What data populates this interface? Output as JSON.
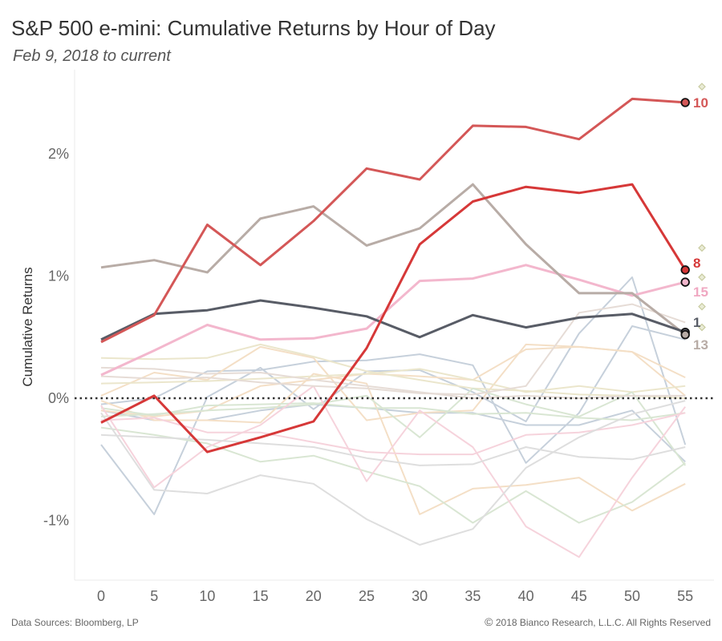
{
  "header": {
    "title": "S&P 500 e-mini: Cumulative Returns by Hour of Day",
    "subtitle": "Feb 9, 2018 to current"
  },
  "footer": {
    "source": "Data Sources: Bloomberg, LP",
    "copyright_symbol": "©",
    "copyright": "2018 Bianco Research, L.L.C. All Rights Reserved"
  },
  "chart_data": {
    "type": "line",
    "title": "S&P 500 e-mini: Cumulative Returns by Hour of Day",
    "subtitle": "Feb 9, 2018 to current",
    "xlabel": "",
    "ylabel": "Cumulative Returns",
    "x": [
      0,
      5,
      10,
      15,
      20,
      25,
      30,
      35,
      40,
      45,
      50,
      55
    ],
    "x_tick_labels": [
      "0",
      "5",
      "10",
      "15",
      "20",
      "25",
      "30",
      "35",
      "40",
      "45",
      "50",
      "55"
    ],
    "y_ticks": [
      -1,
      0,
      1,
      2
    ],
    "y_tick_labels": [
      "-1%",
      "0%",
      "1%",
      "2%"
    ],
    "ylim": [
      -1.48,
      2.55
    ],
    "xlim": [
      -2.5,
      57.5
    ],
    "zero_line": "dotted",
    "grid": false,
    "highlighted_series": [
      {
        "name": "10",
        "color": "#d45757",
        "values": [
          0.46,
          0.68,
          1.42,
          1.09,
          1.45,
          1.88,
          1.79,
          2.23,
          2.22,
          2.12,
          2.45,
          2.42
        ]
      },
      {
        "name": "8",
        "color": "#d63838",
        "values": [
          -0.2,
          0.02,
          -0.44,
          -0.32,
          -0.19,
          0.41,
          1.26,
          1.61,
          1.73,
          1.68,
          1.75,
          1.05
        ]
      },
      {
        "name": "15",
        "color": "#f3b7cd",
        "values": [
          0.19,
          0.39,
          0.6,
          0.48,
          0.49,
          0.57,
          0.96,
          0.98,
          1.09,
          0.97,
          0.84,
          0.95
        ]
      },
      {
        "name": "1",
        "color": "#585c66",
        "values": [
          0.48,
          0.69,
          0.72,
          0.8,
          0.74,
          0.67,
          0.5,
          0.68,
          0.58,
          0.66,
          0.69,
          0.54
        ]
      },
      {
        "name": "13",
        "color": "#b8aca6",
        "values": [
          1.07,
          1.13,
          1.03,
          1.47,
          1.57,
          1.25,
          1.39,
          1.75,
          1.26,
          0.86,
          0.86,
          0.52
        ]
      }
    ],
    "background_series": [
      {
        "color": "#c6d0db",
        "values": [
          -0.38,
          -0.95,
          0.01,
          0.25,
          -0.09,
          0.22,
          0.23,
          0.05,
          -0.19,
          0.53,
          0.99,
          -0.38
        ]
      },
      {
        "color": "#c6d0db",
        "values": [
          -0.05,
          0.0,
          0.22,
          0.23,
          0.3,
          0.31,
          0.36,
          0.27,
          -0.53,
          -0.12,
          0.59,
          0.48
        ]
      },
      {
        "color": "#c6d0db",
        "values": [
          -0.1,
          -0.18,
          -0.18,
          -0.1,
          -0.05,
          -0.08,
          -0.12,
          -0.12,
          -0.22,
          -0.22,
          -0.1,
          -0.52
        ]
      },
      {
        "color": "#f4dfc6",
        "values": [
          0.02,
          0.21,
          0.15,
          0.42,
          0.33,
          -0.18,
          -0.12,
          -0.1,
          0.44,
          0.42,
          0.38,
          0.17
        ]
      },
      {
        "color": "#f4dfc6",
        "values": [
          -0.02,
          -0.18,
          -0.18,
          -0.2,
          0.2,
          0.12,
          -0.95,
          -0.74,
          -0.71,
          -0.65,
          -0.92,
          -0.7
        ]
      },
      {
        "color": "#f4dfc6",
        "values": [
          -0.1,
          -0.15,
          -0.1,
          0.1,
          0.15,
          0.2,
          0.18,
          0.15,
          0.4,
          0.42,
          0.38,
          0.02
        ]
      },
      {
        "color": "#ebe6cc",
        "values": [
          0.33,
          0.32,
          0.33,
          0.44,
          0.34,
          0.22,
          0.15,
          0.08,
          0.06,
          0.03,
          0.02,
          0.0
        ]
      },
      {
        "color": "#ebe6cc",
        "values": [
          0.12,
          0.13,
          0.14,
          0.16,
          0.18,
          0.2,
          0.24,
          0.15,
          0.05,
          0.1,
          0.05,
          0.1
        ]
      },
      {
        "color": "#d9e6d3",
        "values": [
          -0.15,
          -0.13,
          -0.1,
          -0.08,
          -0.05,
          0.02,
          -0.32,
          0.08,
          -0.05,
          -0.15,
          0.05,
          -0.55
        ]
      },
      {
        "color": "#d9e6d3",
        "values": [
          -0.24,
          -0.3,
          -0.37,
          -0.52,
          -0.47,
          -0.6,
          -0.72,
          -1.02,
          -0.76,
          -1.02,
          -0.85,
          -0.53
        ]
      },
      {
        "color": "#d9e6d3",
        "values": [
          -0.08,
          -0.14,
          -0.06,
          -0.05,
          -0.04,
          -0.08,
          -0.08,
          -0.13,
          -0.12,
          -0.16,
          -0.18,
          -0.12
        ]
      },
      {
        "color": "#f6d3dc",
        "values": [
          -0.06,
          -0.73,
          -0.4,
          -0.22,
          0.1,
          -0.68,
          -0.1,
          -0.4,
          -1.05,
          -1.3,
          -0.65,
          -0.07
        ]
      },
      {
        "color": "#f6d3dc",
        "values": [
          -0.18,
          -0.16,
          -0.28,
          -0.28,
          -0.36,
          -0.44,
          -0.46,
          -0.46,
          -0.3,
          -0.28,
          -0.22,
          -0.12
        ]
      },
      {
        "color": "#dedede",
        "values": [
          -0.12,
          -0.75,
          -0.78,
          -0.63,
          -0.7,
          -0.99,
          -1.2,
          -1.07,
          -0.57,
          -0.32,
          -0.13,
          -0.02
        ]
      },
      {
        "color": "#dedede",
        "values": [
          -0.3,
          -0.32,
          -0.34,
          -0.37,
          -0.4,
          -0.49,
          -0.55,
          -0.54,
          -0.4,
          -0.48,
          -0.5,
          -0.4
        ]
      },
      {
        "color": "#e6dcd6",
        "values": [
          0.18,
          0.16,
          0.17,
          0.13,
          0.1,
          0.08,
          0.04,
          0.03,
          0.1,
          0.7,
          0.77,
          0.62
        ]
      },
      {
        "color": "#e6dcd6",
        "values": [
          0.25,
          0.24,
          0.2,
          0.21,
          0.15,
          0.1,
          0.05,
          0.0,
          0.02,
          0.0,
          0.02,
          0.02
        ]
      }
    ],
    "diamond_markers": [
      {
        "color": "#c8cba0",
        "value": 2.55
      },
      {
        "color": "#c8cba0",
        "value": 1.23
      },
      {
        "color": "#c8cba0",
        "value": 0.99
      },
      {
        "color": "#c8cba0",
        "value": 0.75
      },
      {
        "color": "#c8cba0",
        "value": 0.58
      }
    ]
  }
}
